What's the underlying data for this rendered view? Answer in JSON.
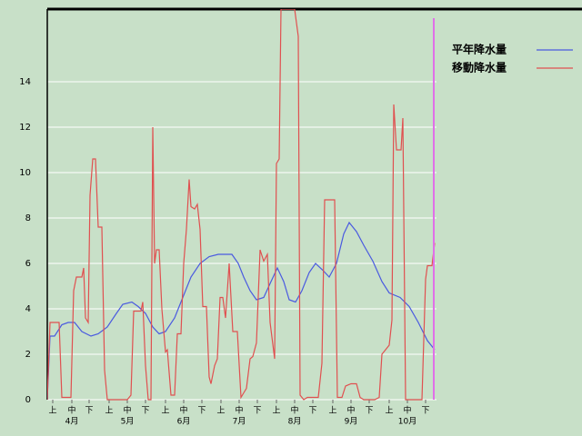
{
  "chart_data": {
    "type": "line",
    "xlim": [
      0,
      214
    ],
    "ylim": [
      0,
      17.2
    ],
    "yticks": [
      0,
      2,
      4,
      6,
      8,
      10,
      12,
      14
    ],
    "xticks": [
      {
        "value": 3,
        "label": "上"
      },
      {
        "value": 13.5,
        "label": "中"
      },
      {
        "value": 23,
        "label": "下"
      },
      {
        "value": 34,
        "label": "上"
      },
      {
        "value": 44,
        "label": "中"
      },
      {
        "value": 54,
        "label": "下"
      },
      {
        "value": 65,
        "label": "上"
      },
      {
        "value": 75,
        "label": "中"
      },
      {
        "value": 85,
        "label": "下"
      },
      {
        "value": 95.5,
        "label": "上"
      },
      {
        "value": 105.5,
        "label": "中"
      },
      {
        "value": 115.5,
        "label": "下"
      },
      {
        "value": 126,
        "label": "上"
      },
      {
        "value": 136,
        "label": "中"
      },
      {
        "value": 146,
        "label": "下"
      },
      {
        "value": 157,
        "label": "上"
      },
      {
        "value": 167,
        "label": "中"
      },
      {
        "value": 177,
        "label": "下"
      },
      {
        "value": 188,
        "label": "上"
      },
      {
        "value": 198,
        "label": "中"
      },
      {
        "value": 208,
        "label": "下"
      }
    ],
    "month_labels": [
      {
        "value": 13.5,
        "label": "4月"
      },
      {
        "value": 44,
        "label": "5月"
      },
      {
        "value": 75,
        "label": "6月"
      },
      {
        "value": 105.5,
        "label": "7月"
      },
      {
        "value": 136,
        "label": "8月"
      },
      {
        "value": 167,
        "label": "9月"
      },
      {
        "value": 198,
        "label": "10月"
      }
    ],
    "grid": true,
    "legend": "top-right",
    "current_marker": {
      "x": 212.5,
      "color": "#e070e8"
    },
    "series": [
      {
        "name": "平年降水量",
        "color": "#4a5ae0",
        "x": [
          0,
          1.5,
          4,
          8,
          11.5,
          15,
          19,
          24,
          28,
          33,
          38,
          41.5,
          46.5,
          50,
          54,
          58,
          61.5,
          65,
          70,
          74,
          79,
          84,
          89,
          94,
          101.5,
          105,
          108,
          111.5,
          115,
          119,
          123,
          126.5,
          130,
          133,
          136.5,
          140,
          144,
          147.5,
          151.5,
          155,
          159,
          163,
          166,
          170,
          174,
          179,
          184,
          188,
          194,
          199,
          204,
          209,
          213
        ],
        "values": [
          0,
          2.8,
          2.8,
          3.3,
          3.4,
          3.4,
          3.0,
          2.8,
          2.9,
          3.2,
          3.8,
          4.2,
          4.3,
          4.1,
          3.8,
          3.2,
          2.9,
          3.0,
          3.6,
          4.4,
          5.4,
          6.0,
          6.3,
          6.4,
          6.4,
          6.0,
          5.4,
          4.8,
          4.4,
          4.5,
          5.2,
          5.8,
          5.2,
          4.4,
          4.3,
          4.8,
          5.6,
          6.0,
          5.7,
          5.4,
          6.0,
          7.3,
          7.8,
          7.4,
          6.8,
          6.1,
          5.2,
          4.7,
          4.5,
          4.1,
          3.4,
          2.6,
          2.2
        ]
      },
      {
        "name": "移動降水量",
        "color": "#e05050",
        "x": [
          0,
          1.5,
          6.5,
          8,
          13,
          14.5,
          16,
          19,
          20,
          21,
          22.5,
          23.5,
          25,
          26.5,
          28,
          30,
          31.5,
          33,
          44,
          46,
          47.5,
          51.5,
          52.5,
          54,
          55.5,
          57,
          58,
          59,
          60,
          61.5,
          63,
          65,
          66,
          68,
          70,
          71.5,
          73.5,
          75,
          76.5,
          78,
          79,
          81,
          82.5,
          84,
          85.5,
          87.5,
          89,
          90,
          92,
          93.5,
          95,
          96.5,
          98,
          100,
          102,
          104.5,
          106.5,
          108,
          109.5,
          111.5,
          113,
          115,
          117,
          119,
          121,
          122.5,
          125,
          126,
          127.5,
          128.5,
          136,
          138,
          139,
          141,
          143,
          149,
          151,
          152.5,
          158,
          159.5,
          162,
          164,
          167,
          170,
          172,
          174,
          180,
          182.5,
          184,
          186,
          188,
          189.5,
          190.5,
          192,
          194.5,
          195.5,
          197,
          206,
          208,
          209,
          211.5,
          213
        ],
        "values": [
          0,
          3.4,
          3.4,
          0.1,
          0.1,
          4.8,
          5.4,
          5.4,
          5.8,
          3.6,
          3.4,
          9,
          10.6,
          10.6,
          7.6,
          7.6,
          1.3,
          0,
          0,
          0.2,
          3.9,
          3.9,
          4.3,
          1.5,
          0,
          0,
          12,
          6,
          6.6,
          6.6,
          4,
          2.1,
          2.2,
          0.2,
          0.2,
          2.9,
          2.9,
          6,
          7.5,
          9.7,
          8.5,
          8.4,
          8.6,
          7.5,
          4.1,
          4.1,
          1,
          0.7,
          1.5,
          1.8,
          4.5,
          4.5,
          3.6,
          6,
          3,
          3,
          0.1,
          0.3,
          0.5,
          1.8,
          1.9,
          2.5,
          6.6,
          6.1,
          6.4,
          3.4,
          1.8,
          10.4,
          10.6,
          17.2,
          17.2,
          16,
          0.2,
          0,
          0.1,
          0.1,
          1.6,
          8.8,
          8.8,
          0.1,
          0.1,
          0.6,
          0.7,
          0.7,
          0.1,
          0,
          0,
          0.1,
          2,
          2.2,
          2.4,
          3.5,
          13,
          11,
          11,
          12.4,
          0,
          0,
          5.3,
          5.9,
          5.9,
          6.9
        ]
      }
    ]
  }
}
